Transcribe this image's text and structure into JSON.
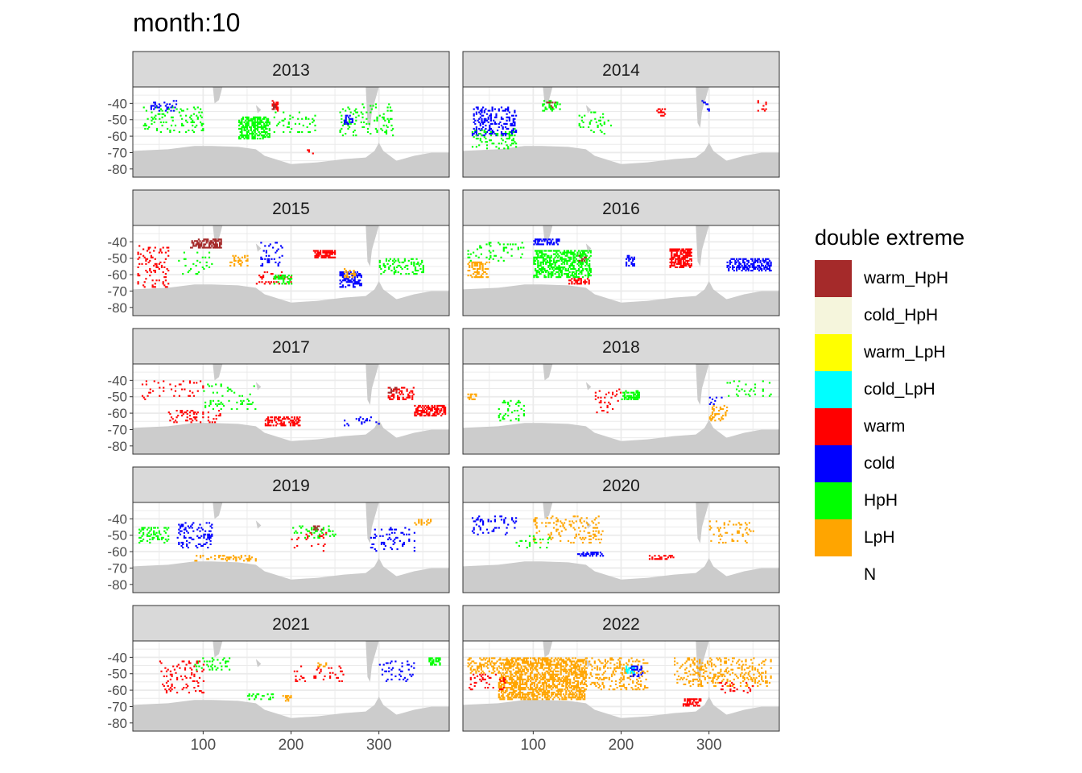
{
  "page_title": "month:10",
  "chart_data": {
    "type": "heatmap",
    "title": "month:10",
    "facet_variable": "year",
    "facets": [
      "2013",
      "2014",
      "2015",
      "2016",
      "2017",
      "2018",
      "2019",
      "2020",
      "2021",
      "2022"
    ],
    "layout": {
      "ncol": 2,
      "nrow": 5
    },
    "x_axis": {
      "ticks": [
        100,
        200,
        300
      ],
      "xlim": [
        20,
        380
      ],
      "label": ""
    },
    "y_axis": {
      "ticks": [
        -40,
        -50,
        -60,
        -70,
        -80
      ],
      "ylim": [
        -85,
        -30
      ],
      "label": ""
    },
    "legend": {
      "title": "double extreme",
      "position": "right",
      "entries": [
        {
          "label": "warm_HpH",
          "color": "#A52A2A"
        },
        {
          "label": "cold_HpH",
          "color": "#F5F5DC"
        },
        {
          "label": "warm_LpH",
          "color": "#FFFF00"
        },
        {
          "label": "cold_LpH",
          "color": "#00FFFF"
        },
        {
          "label": "warm",
          "color": "#FF0000"
        },
        {
          "label": "cold",
          "color": "#0000FF"
        },
        {
          "label": "HpH",
          "color": "#00FF00"
        },
        {
          "label": "LpH",
          "color": "#FFA500"
        },
        {
          "label": "N",
          "color": "#FFFFFF"
        }
      ]
    },
    "land_color": "#CCCCCC",
    "grid": true,
    "regions": {
      "2013": [
        {
          "cat": "HpH",
          "x": [
            140,
            175
          ],
          "y": [
            -62,
            -48
          ],
          "d": 0.55
        },
        {
          "cat": "HpH",
          "x": [
            30,
            100
          ],
          "y": [
            -58,
            -42
          ],
          "d": 0.12
        },
        {
          "cat": "HpH",
          "x": [
            255,
            320
          ],
          "y": [
            -60,
            -40
          ],
          "d": 0.12
        },
        {
          "cat": "HpH",
          "x": [
            180,
            230
          ],
          "y": [
            -58,
            -45
          ],
          "d": 0.08
        },
        {
          "cat": "cold",
          "x": [
            40,
            70
          ],
          "y": [
            -45,
            -38
          ],
          "d": 0.2
        },
        {
          "cat": "cold",
          "x": [
            260,
            270
          ],
          "y": [
            -53,
            -47
          ],
          "d": 0.5
        },
        {
          "cat": "warm",
          "x": [
            178,
            185
          ],
          "y": [
            -45,
            -38
          ],
          "d": 0.4
        },
        {
          "cat": "warm",
          "x": [
            215,
            225
          ],
          "y": [
            -72,
            -68
          ],
          "d": 0.3
        },
        {
          "cat": "warm_HpH",
          "x": [
            178,
            182
          ],
          "y": [
            -44,
            -40
          ],
          "d": 0.5
        }
      ],
      "2014": [
        {
          "cat": "cold",
          "x": [
            30,
            80
          ],
          "y": [
            -60,
            -42
          ],
          "d": 0.3
        },
        {
          "cat": "cold",
          "x": [
            290,
            300
          ],
          "y": [
            -45,
            -38
          ],
          "d": 0.3
        },
        {
          "cat": "HpH",
          "x": [
            110,
            130
          ],
          "y": [
            -45,
            -38
          ],
          "d": 0.4
        },
        {
          "cat": "HpH",
          "x": [
            30,
            80
          ],
          "y": [
            -68,
            -55
          ],
          "d": 0.15
        },
        {
          "cat": "HpH",
          "x": [
            150,
            190
          ],
          "y": [
            -60,
            -45
          ],
          "d": 0.1
        },
        {
          "cat": "warm",
          "x": [
            240,
            250
          ],
          "y": [
            -48,
            -43
          ],
          "d": 0.4
        },
        {
          "cat": "warm",
          "x": [
            355,
            365
          ],
          "y": [
            -45,
            -38
          ],
          "d": 0.3
        },
        {
          "cat": "warm_HpH",
          "x": [
            115,
            125
          ],
          "y": [
            -43,
            -39
          ],
          "d": 0.4
        }
      ],
      "2015": [
        {
          "cat": "warm_HpH",
          "x": [
            85,
            120
          ],
          "y": [
            -44,
            -38
          ],
          "d": 0.6
        },
        {
          "cat": "warm",
          "x": [
            225,
            250
          ],
          "y": [
            -50,
            -45
          ],
          "d": 0.7
        },
        {
          "cat": "warm",
          "x": [
            25,
            60
          ],
          "y": [
            -68,
            -42
          ],
          "d": 0.15
        },
        {
          "cat": "warm",
          "x": [
            160,
            200
          ],
          "y": [
            -66,
            -58
          ],
          "d": 0.2
        },
        {
          "cat": "cold",
          "x": [
            255,
            280
          ],
          "y": [
            -68,
            -58
          ],
          "d": 0.4
        },
        {
          "cat": "cold",
          "x": [
            165,
            190
          ],
          "y": [
            -55,
            -40
          ],
          "d": 0.2
        },
        {
          "cat": "LpH",
          "x": [
            130,
            150
          ],
          "y": [
            -55,
            -48
          ],
          "d": 0.3
        },
        {
          "cat": "LpH",
          "x": [
            260,
            275
          ],
          "y": [
            -62,
            -56
          ],
          "d": 0.4
        },
        {
          "cat": "HpH",
          "x": [
            300,
            350
          ],
          "y": [
            -60,
            -50
          ],
          "d": 0.3
        },
        {
          "cat": "HpH",
          "x": [
            180,
            200
          ],
          "y": [
            -66,
            -60
          ],
          "d": 0.4
        },
        {
          "cat": "HpH",
          "x": [
            70,
            110
          ],
          "y": [
            -60,
            -45
          ],
          "d": 0.08
        }
      ],
      "2016": [
        {
          "cat": "HpH",
          "x": [
            100,
            165
          ],
          "y": [
            -62,
            -45
          ],
          "d": 0.5
        },
        {
          "cat": "cold",
          "x": [
            100,
            130
          ],
          "y": [
            -42,
            -38
          ],
          "d": 0.5
        },
        {
          "cat": "cold",
          "x": [
            320,
            370
          ],
          "y": [
            -58,
            -50
          ],
          "d": 0.5
        },
        {
          "cat": "cold",
          "x": [
            205,
            215
          ],
          "y": [
            -55,
            -48
          ],
          "d": 0.5
        },
        {
          "cat": "warm",
          "x": [
            255,
            280
          ],
          "y": [
            -56,
            -44
          ],
          "d": 0.7
        },
        {
          "cat": "warm",
          "x": [
            140,
            165
          ],
          "y": [
            -66,
            -62
          ],
          "d": 0.4
        },
        {
          "cat": "LpH",
          "x": [
            25,
            50
          ],
          "y": [
            -62,
            -52
          ],
          "d": 0.4
        },
        {
          "cat": "HpH",
          "x": [
            25,
            90
          ],
          "y": [
            -52,
            -40
          ],
          "d": 0.1
        },
        {
          "cat": "warm_HpH",
          "x": [
            150,
            160
          ],
          "y": [
            -52,
            -48
          ],
          "d": 0.3
        }
      ],
      "2017": [
        {
          "cat": "warm",
          "x": [
            340,
            375
          ],
          "y": [
            -62,
            -55
          ],
          "d": 0.6
        },
        {
          "cat": "warm",
          "x": [
            170,
            210
          ],
          "y": [
            -68,
            -62
          ],
          "d": 0.5
        },
        {
          "cat": "warm",
          "x": [
            60,
            120
          ],
          "y": [
            -66,
            -58
          ],
          "d": 0.2
        },
        {
          "cat": "warm",
          "x": [
            310,
            340
          ],
          "y": [
            -52,
            -44
          ],
          "d": 0.35
        },
        {
          "cat": "warm",
          "x": [
            30,
            100
          ],
          "y": [
            -52,
            -40
          ],
          "d": 0.08
        },
        {
          "cat": "HpH",
          "x": [
            100,
            160
          ],
          "y": [
            -58,
            -42
          ],
          "d": 0.1
        },
        {
          "cat": "cold",
          "x": [
            260,
            300
          ],
          "y": [
            -68,
            -62
          ],
          "d": 0.15
        },
        {
          "cat": "warm_HpH",
          "x": [
            310,
            320
          ],
          "y": [
            -48,
            -44
          ],
          "d": 0.4
        }
      ],
      "2018": [
        {
          "cat": "HpH",
          "x": [
            200,
            220
          ],
          "y": [
            -52,
            -46
          ],
          "d": 0.5
        },
        {
          "cat": "HpH",
          "x": [
            60,
            90
          ],
          "y": [
            -65,
            -52
          ],
          "d": 0.15
        },
        {
          "cat": "LpH",
          "x": [
            300,
            320
          ],
          "y": [
            -65,
            -55
          ],
          "d": 0.3
        },
        {
          "cat": "LpH",
          "x": [
            25,
            35
          ],
          "y": [
            -52,
            -48
          ],
          "d": 0.4
        },
        {
          "cat": "warm",
          "x": [
            170,
            200
          ],
          "y": [
            -60,
            -45
          ],
          "d": 0.1
        },
        {
          "cat": "HpH",
          "x": [
            320,
            370
          ],
          "y": [
            -50,
            -40
          ],
          "d": 0.1
        },
        {
          "cat": "cold",
          "x": [
            300,
            315
          ],
          "y": [
            -55,
            -50
          ],
          "d": 0.2
        }
      ],
      "2019": [
        {
          "cat": "HpH",
          "x": [
            25,
            60
          ],
          "y": [
            -55,
            -45
          ],
          "d": 0.3
        },
        {
          "cat": "cold",
          "x": [
            70,
            110
          ],
          "y": [
            -58,
            -42
          ],
          "d": 0.2
        },
        {
          "cat": "cold",
          "x": [
            290,
            340
          ],
          "y": [
            -60,
            -45
          ],
          "d": 0.15
        },
        {
          "cat": "LpH",
          "x": [
            90,
            160
          ],
          "y": [
            -66,
            -62
          ],
          "d": 0.25
        },
        {
          "cat": "HpH",
          "x": [
            200,
            250
          ],
          "y": [
            -52,
            -44
          ],
          "d": 0.15
        },
        {
          "cat": "warm",
          "x": [
            200,
            240
          ],
          "y": [
            -60,
            -48
          ],
          "d": 0.08
        },
        {
          "cat": "LpH",
          "x": [
            340,
            360
          ],
          "y": [
            -44,
            -40
          ],
          "d": 0.4
        },
        {
          "cat": "warm_HpH",
          "x": [
            225,
            235
          ],
          "y": [
            -47,
            -44
          ],
          "d": 0.4
        }
      ],
      "2020": [
        {
          "cat": "LpH",
          "x": [
            100,
            180
          ],
          "y": [
            -55,
            -38
          ],
          "d": 0.15
        },
        {
          "cat": "cold",
          "x": [
            30,
            80
          ],
          "y": [
            -50,
            -38
          ],
          "d": 0.15
        },
        {
          "cat": "cold",
          "x": [
            150,
            180
          ],
          "y": [
            -63,
            -60
          ],
          "d": 0.5
        },
        {
          "cat": "warm",
          "x": [
            230,
            260
          ],
          "y": [
            -65,
            -62
          ],
          "d": 0.4
        },
        {
          "cat": "LpH",
          "x": [
            300,
            350
          ],
          "y": [
            -55,
            -40
          ],
          "d": 0.1
        },
        {
          "cat": "HpH",
          "x": [
            80,
            120
          ],
          "y": [
            -58,
            -50
          ],
          "d": 0.08
        }
      ],
      "2021": [
        {
          "cat": "HpH",
          "x": [
            90,
            130
          ],
          "y": [
            -48,
            -40
          ],
          "d": 0.2
        },
        {
          "cat": "HpH",
          "x": [
            355,
            370
          ],
          "y": [
            -45,
            -40
          ],
          "d": 0.5
        },
        {
          "cat": "warm",
          "x": [
            50,
            100
          ],
          "y": [
            -62,
            -42
          ],
          "d": 0.12
        },
        {
          "cat": "warm",
          "x": [
            200,
            260
          ],
          "y": [
            -55,
            -45
          ],
          "d": 0.1
        },
        {
          "cat": "cold",
          "x": [
            300,
            340
          ],
          "y": [
            -55,
            -42
          ],
          "d": 0.1
        },
        {
          "cat": "LpH",
          "x": [
            230,
            240
          ],
          "y": [
            -46,
            -43
          ],
          "d": 0.5
        },
        {
          "cat": "LpH",
          "x": [
            190,
            200
          ],
          "y": [
            -67,
            -63
          ],
          "d": 0.4
        },
        {
          "cat": "HpH",
          "x": [
            150,
            180
          ],
          "y": [
            -66,
            -62
          ],
          "d": 0.3
        }
      ],
      "2022": [
        {
          "cat": "LpH",
          "x": [
            60,
            160
          ],
          "y": [
            -66,
            -40
          ],
          "d": 0.55
        },
        {
          "cat": "LpH",
          "x": [
            25,
            60
          ],
          "y": [
            -50,
            -40
          ],
          "d": 0.3
        },
        {
          "cat": "LpH",
          "x": [
            160,
            230
          ],
          "y": [
            -60,
            -40
          ],
          "d": 0.2
        },
        {
          "cat": "LpH",
          "x": [
            260,
            370
          ],
          "y": [
            -58,
            -40
          ],
          "d": 0.2
        },
        {
          "cat": "cold_LpH",
          "x": [
            205,
            215
          ],
          "y": [
            -50,
            -45
          ],
          "d": 0.6
        },
        {
          "cat": "cold",
          "x": [
            210,
            225
          ],
          "y": [
            -52,
            -45
          ],
          "d": 0.3
        },
        {
          "cat": "warm",
          "x": [
            270,
            290
          ],
          "y": [
            -70,
            -65
          ],
          "d": 0.6
        },
        {
          "cat": "warm",
          "x": [
            25,
            70
          ],
          "y": [
            -60,
            -50
          ],
          "d": 0.15
        },
        {
          "cat": "warm",
          "x": [
            310,
            350
          ],
          "y": [
            -62,
            -55
          ],
          "d": 0.15
        }
      ]
    }
  }
}
